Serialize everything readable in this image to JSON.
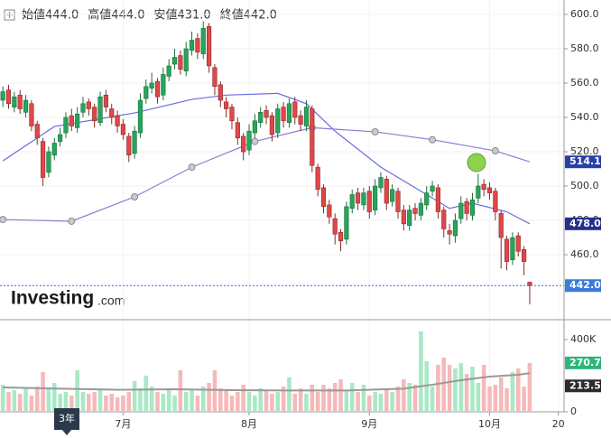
{
  "chart_data": {
    "type": "candlestick",
    "ohlc_header": [
      {
        "label": "始値",
        "value": "444.0"
      },
      {
        "label": "高値",
        "value": "444.0"
      },
      {
        "label": "安値",
        "value": "431.0"
      },
      {
        "label": "終値",
        "value": "442.0"
      }
    ],
    "logo": [
      "Investing",
      ".com"
    ],
    "period_label": "3年",
    "xlim": [
      -0.5,
      98
    ],
    "xticks": [
      {
        "value": 21,
        "label": "7月"
      },
      {
        "value": 43,
        "label": "8月"
      },
      {
        "value": 64,
        "label": "9月"
      },
      {
        "value": 85,
        "label": "10月"
      },
      {
        "value": 97,
        "label": "20"
      }
    ],
    "ylim": [
      429.5,
      608.4
    ],
    "yticks": [
      {
        "value": 460,
        "label": "460.0"
      },
      {
        "value": 480,
        "label": "480.0"
      },
      {
        "value": 500,
        "label": "500.0"
      },
      {
        "value": 520,
        "label": "520.0"
      },
      {
        "value": 540,
        "label": "540.0"
      },
      {
        "value": 560,
        "label": "560.0"
      },
      {
        "value": 580,
        "label": "580.0"
      },
      {
        "value": 600,
        "label": "600.0"
      }
    ],
    "grid": true,
    "up_color": "#26a65b",
    "down_color": "#e04848",
    "open": [
      550,
      556,
      546,
      553,
      543,
      548,
      536,
      526,
      508,
      518,
      526,
      531,
      541,
      534,
      543,
      549,
      546,
      537,
      553,
      545,
      541,
      536,
      529,
      519,
      531,
      551,
      557,
      561,
      553,
      564,
      571,
      576,
      567,
      579,
      586,
      577,
      593,
      569,
      559,
      549,
      546,
      537,
      529,
      521,
      531,
      537,
      544,
      541,
      531,
      546,
      537,
      549,
      541,
      535,
      545,
      511,
      499,
      489,
      481,
      473,
      469,
      487,
      496,
      489,
      497,
      486,
      499,
      504,
      491,
      497,
      486,
      477,
      487,
      483,
      489,
      497,
      499,
      486,
      474,
      471,
      481,
      491,
      483,
      493,
      501,
      499,
      497,
      484,
      469,
      457,
      471,
      463,
      444
    ],
    "high": [
      558,
      559,
      555,
      556,
      553,
      550,
      538,
      528,
      523,
      528,
      534,
      543,
      545,
      546,
      552,
      551,
      548,
      555,
      556,
      548,
      544,
      539,
      531,
      535,
      554,
      562,
      566,
      563,
      569,
      574,
      580,
      579,
      584,
      590,
      589,
      596,
      595,
      571,
      561,
      552,
      548,
      540,
      531,
      536,
      542,
      546,
      547,
      543,
      548,
      549,
      551,
      552,
      544,
      550,
      547,
      513,
      501,
      492,
      484,
      475,
      491,
      498,
      499,
      499,
      500,
      504,
      508,
      506,
      501,
      499,
      489,
      489,
      490,
      493,
      500,
      503,
      501,
      488,
      478,
      484,
      494,
      493,
      496,
      507,
      504,
      502,
      499,
      486,
      471,
      473,
      473,
      465,
      444
    ],
    "low": [
      546,
      545,
      543,
      542,
      540,
      532,
      524,
      500,
      505,
      515,
      523,
      528,
      532,
      531,
      540,
      541,
      534,
      535,
      543,
      536,
      531,
      527,
      514,
      516,
      528,
      548,
      554,
      548,
      550,
      561,
      568,
      565,
      564,
      576,
      574,
      574,
      566,
      553,
      546,
      540,
      533,
      524,
      515,
      518,
      528,
      534,
      536,
      526,
      528,
      534,
      534,
      536,
      532,
      532,
      508,
      494,
      484,
      478,
      466,
      462,
      466,
      484,
      486,
      486,
      481,
      483,
      496,
      486,
      488,
      481,
      474,
      474,
      480,
      480,
      486,
      494,
      481,
      470,
      466,
      467,
      478,
      480,
      480,
      490,
      494,
      492,
      480,
      452,
      451,
      454,
      459,
      448,
      431
    ],
    "close": [
      555,
      548,
      552,
      545,
      550,
      535,
      528,
      505,
      520,
      525,
      530,
      540,
      535,
      542,
      548,
      545,
      538,
      552,
      546,
      540,
      535,
      530,
      518,
      532,
      550,
      558,
      560,
      552,
      565,
      570,
      575,
      568,
      580,
      585,
      578,
      592,
      570,
      558,
      550,
      545,
      538,
      528,
      520,
      532,
      538,
      543,
      540,
      530,
      545,
      538,
      548,
      540,
      536,
      546,
      512,
      498,
      488,
      482,
      472,
      468,
      488,
      495,
      490,
      496,
      485,
      500,
      505,
      490,
      498,
      485,
      478,
      486,
      484,
      490,
      496,
      500,
      485,
      475,
      472,
      480,
      490,
      484,
      492,
      500,
      498,
      496,
      485,
      470,
      456,
      470,
      462,
      456,
      442
    ],
    "last_close_label": "442.0",
    "ma_lines": [
      {
        "color": "#6b6be0",
        "x": [
          0,
          9,
          23,
          33,
          39,
          48,
          53,
          58,
          66,
          74,
          78,
          82,
          88,
          92
        ],
        "values": [
          514.7,
          534.7,
          542.6,
          550.5,
          553,
          554,
          548,
          532,
          511,
          495,
          487,
          490,
          485,
          478.0
        ],
        "end_label": "478.0",
        "label_color": "#25308c",
        "markers": false
      },
      {
        "color": "#8d7ad6",
        "x": [
          0,
          12,
          23,
          33,
          44,
          54,
          65,
          75,
          86,
          92
        ],
        "values": [
          480.5,
          479.5,
          493.7,
          511,
          526,
          534,
          531.6,
          527,
          520.5,
          514.1
        ],
        "end_label": "514.1",
        "label_color": "#2a3fa6",
        "markers": true
      }
    ],
    "volume": {
      "ylim": [
        0,
        510
      ],
      "yticks": [
        {
          "value": 400,
          "label": "400K"
        },
        {
          "value": 0,
          "label": "0"
        }
      ],
      "up_color": "#a9e8c6",
      "down_color": "#f6b9b9",
      "values": [
        150,
        110,
        120,
        100,
        130,
        90,
        140,
        220,
        130,
        160,
        100,
        110,
        90,
        230,
        110,
        100,
        110,
        120,
        90,
        100,
        80,
        90,
        110,
        170,
        130,
        200,
        140,
        110,
        100,
        120,
        90,
        230,
        110,
        120,
        90,
        140,
        160,
        230,
        130,
        120,
        90,
        110,
        150,
        110,
        90,
        130,
        120,
        100,
        110,
        140,
        190,
        100,
        130,
        100,
        150,
        110,
        150,
        130,
        160,
        180,
        120,
        160,
        110,
        150,
        90,
        110,
        100,
        120,
        110,
        140,
        180,
        160,
        150,
        445,
        280,
        140,
        260,
        300,
        260,
        240,
        270,
        210,
        250,
        160,
        260,
        140,
        150,
        190,
        130,
        220,
        240,
        140,
        270.7
      ],
      "end_label": "270.7K",
      "end_label_color": "#2fb57a",
      "ma": {
        "color": "#999999",
        "x": [
          0,
          10,
          20,
          30,
          40,
          50,
          60,
          70,
          75,
          80,
          85,
          90,
          92
        ],
        "values": [
          135,
          128,
          122,
          125,
          120,
          118,
          118,
          128,
          150,
          175,
          195,
          205,
          213.55
        ],
        "end_label": "213.55K",
        "label_color": "#2b2b2b"
      }
    }
  }
}
